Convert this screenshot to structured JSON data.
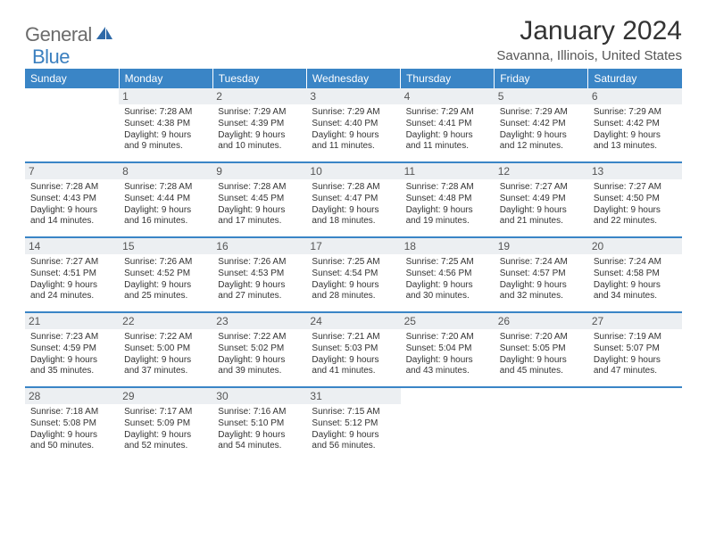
{
  "brand": {
    "part1": "General",
    "part2": "Blue"
  },
  "title": "January 2024",
  "location": "Savanna, Illinois, United States",
  "header_bg": "#3a85c6",
  "dow": [
    "Sunday",
    "Monday",
    "Tuesday",
    "Wednesday",
    "Thursday",
    "Friday",
    "Saturday"
  ],
  "weeks": [
    [
      {
        "n": "",
        "sr": "",
        "ss": "",
        "dl": ""
      },
      {
        "n": "1",
        "sr": "Sunrise: 7:28 AM",
        "ss": "Sunset: 4:38 PM",
        "dl": "Daylight: 9 hours and 9 minutes."
      },
      {
        "n": "2",
        "sr": "Sunrise: 7:29 AM",
        "ss": "Sunset: 4:39 PM",
        "dl": "Daylight: 9 hours and 10 minutes."
      },
      {
        "n": "3",
        "sr": "Sunrise: 7:29 AM",
        "ss": "Sunset: 4:40 PM",
        "dl": "Daylight: 9 hours and 11 minutes."
      },
      {
        "n": "4",
        "sr": "Sunrise: 7:29 AM",
        "ss": "Sunset: 4:41 PM",
        "dl": "Daylight: 9 hours and 11 minutes."
      },
      {
        "n": "5",
        "sr": "Sunrise: 7:29 AM",
        "ss": "Sunset: 4:42 PM",
        "dl": "Daylight: 9 hours and 12 minutes."
      },
      {
        "n": "6",
        "sr": "Sunrise: 7:29 AM",
        "ss": "Sunset: 4:42 PM",
        "dl": "Daylight: 9 hours and 13 minutes."
      }
    ],
    [
      {
        "n": "7",
        "sr": "Sunrise: 7:28 AM",
        "ss": "Sunset: 4:43 PM",
        "dl": "Daylight: 9 hours and 14 minutes."
      },
      {
        "n": "8",
        "sr": "Sunrise: 7:28 AM",
        "ss": "Sunset: 4:44 PM",
        "dl": "Daylight: 9 hours and 16 minutes."
      },
      {
        "n": "9",
        "sr": "Sunrise: 7:28 AM",
        "ss": "Sunset: 4:45 PM",
        "dl": "Daylight: 9 hours and 17 minutes."
      },
      {
        "n": "10",
        "sr": "Sunrise: 7:28 AM",
        "ss": "Sunset: 4:47 PM",
        "dl": "Daylight: 9 hours and 18 minutes."
      },
      {
        "n": "11",
        "sr": "Sunrise: 7:28 AM",
        "ss": "Sunset: 4:48 PM",
        "dl": "Daylight: 9 hours and 19 minutes."
      },
      {
        "n": "12",
        "sr": "Sunrise: 7:27 AM",
        "ss": "Sunset: 4:49 PM",
        "dl": "Daylight: 9 hours and 21 minutes."
      },
      {
        "n": "13",
        "sr": "Sunrise: 7:27 AM",
        "ss": "Sunset: 4:50 PM",
        "dl": "Daylight: 9 hours and 22 minutes."
      }
    ],
    [
      {
        "n": "14",
        "sr": "Sunrise: 7:27 AM",
        "ss": "Sunset: 4:51 PM",
        "dl": "Daylight: 9 hours and 24 minutes."
      },
      {
        "n": "15",
        "sr": "Sunrise: 7:26 AM",
        "ss": "Sunset: 4:52 PM",
        "dl": "Daylight: 9 hours and 25 minutes."
      },
      {
        "n": "16",
        "sr": "Sunrise: 7:26 AM",
        "ss": "Sunset: 4:53 PM",
        "dl": "Daylight: 9 hours and 27 minutes."
      },
      {
        "n": "17",
        "sr": "Sunrise: 7:25 AM",
        "ss": "Sunset: 4:54 PM",
        "dl": "Daylight: 9 hours and 28 minutes."
      },
      {
        "n": "18",
        "sr": "Sunrise: 7:25 AM",
        "ss": "Sunset: 4:56 PM",
        "dl": "Daylight: 9 hours and 30 minutes."
      },
      {
        "n": "19",
        "sr": "Sunrise: 7:24 AM",
        "ss": "Sunset: 4:57 PM",
        "dl": "Daylight: 9 hours and 32 minutes."
      },
      {
        "n": "20",
        "sr": "Sunrise: 7:24 AM",
        "ss": "Sunset: 4:58 PM",
        "dl": "Daylight: 9 hours and 34 minutes."
      }
    ],
    [
      {
        "n": "21",
        "sr": "Sunrise: 7:23 AM",
        "ss": "Sunset: 4:59 PM",
        "dl": "Daylight: 9 hours and 35 minutes."
      },
      {
        "n": "22",
        "sr": "Sunrise: 7:22 AM",
        "ss": "Sunset: 5:00 PM",
        "dl": "Daylight: 9 hours and 37 minutes."
      },
      {
        "n": "23",
        "sr": "Sunrise: 7:22 AM",
        "ss": "Sunset: 5:02 PM",
        "dl": "Daylight: 9 hours and 39 minutes."
      },
      {
        "n": "24",
        "sr": "Sunrise: 7:21 AM",
        "ss": "Sunset: 5:03 PM",
        "dl": "Daylight: 9 hours and 41 minutes."
      },
      {
        "n": "25",
        "sr": "Sunrise: 7:20 AM",
        "ss": "Sunset: 5:04 PM",
        "dl": "Daylight: 9 hours and 43 minutes."
      },
      {
        "n": "26",
        "sr": "Sunrise: 7:20 AM",
        "ss": "Sunset: 5:05 PM",
        "dl": "Daylight: 9 hours and 45 minutes."
      },
      {
        "n": "27",
        "sr": "Sunrise: 7:19 AM",
        "ss": "Sunset: 5:07 PM",
        "dl": "Daylight: 9 hours and 47 minutes."
      }
    ],
    [
      {
        "n": "28",
        "sr": "Sunrise: 7:18 AM",
        "ss": "Sunset: 5:08 PM",
        "dl": "Daylight: 9 hours and 50 minutes."
      },
      {
        "n": "29",
        "sr": "Sunrise: 7:17 AM",
        "ss": "Sunset: 5:09 PM",
        "dl": "Daylight: 9 hours and 52 minutes."
      },
      {
        "n": "30",
        "sr": "Sunrise: 7:16 AM",
        "ss": "Sunset: 5:10 PM",
        "dl": "Daylight: 9 hours and 54 minutes."
      },
      {
        "n": "31",
        "sr": "Sunrise: 7:15 AM",
        "ss": "Sunset: 5:12 PM",
        "dl": "Daylight: 9 hours and 56 minutes."
      },
      {
        "n": "",
        "sr": "",
        "ss": "",
        "dl": ""
      },
      {
        "n": "",
        "sr": "",
        "ss": "",
        "dl": ""
      },
      {
        "n": "",
        "sr": "",
        "ss": "",
        "dl": ""
      }
    ]
  ]
}
